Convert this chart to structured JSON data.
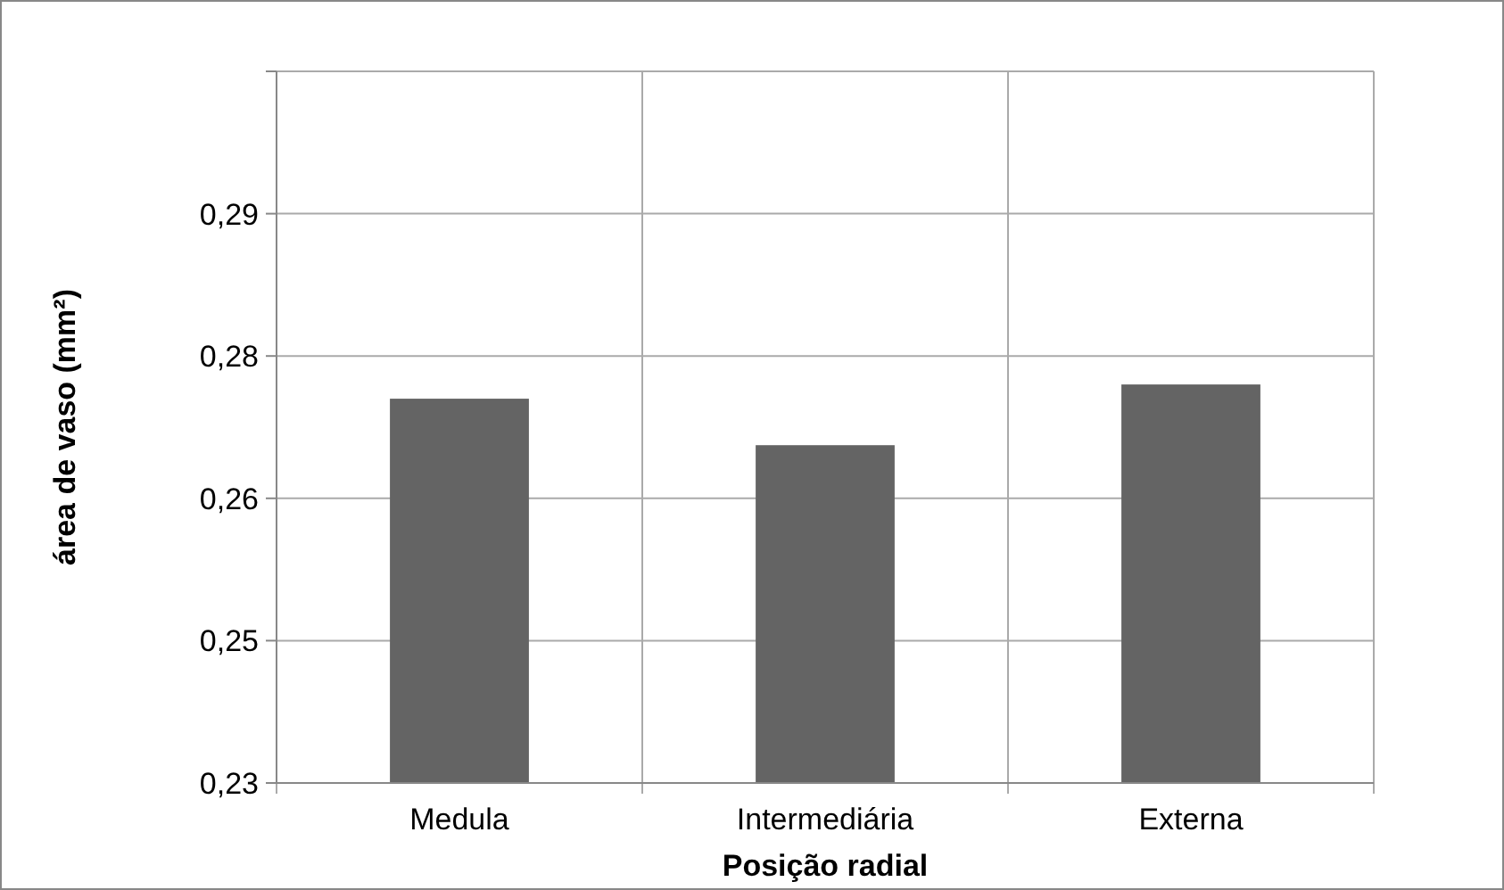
{
  "chart_data": {
    "type": "bar",
    "xlabel": "Posição radial",
    "ylabel": "área de vaso (mm²)",
    "categories": [
      "Medula",
      "Intermediária",
      "Externa"
    ],
    "values": [
      0.2705,
      0.2656,
      0.272
    ],
    "color": "#646464",
    "ylim": [
      0.23,
      0.305
    ],
    "yticks": [
      {
        "value": 0.23,
        "label": "0,23"
      },
      {
        "value": 0.245,
        "label": "0,25"
      },
      {
        "value": 0.26,
        "label": "0,26"
      },
      {
        "value": 0.275,
        "label": "0,28"
      },
      {
        "value": 0.29,
        "label": "0,29"
      },
      {
        "value": 0.305,
        "label": null
      }
    ],
    "grid": true
  }
}
